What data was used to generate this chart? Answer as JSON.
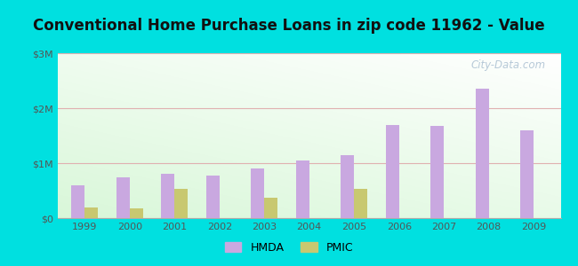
{
  "title": "Conventional Home Purchase Loans in zip code 11962 - Value",
  "years": [
    1999,
    2000,
    2001,
    2002,
    2003,
    2004,
    2005,
    2006,
    2007,
    2008,
    2009
  ],
  "hmda": [
    600000,
    750000,
    800000,
    780000,
    900000,
    1050000,
    1150000,
    1700000,
    1680000,
    2350000,
    1600000
  ],
  "pmic": [
    200000,
    180000,
    530000,
    0,
    370000,
    0,
    530000,
    0,
    0,
    0,
    0
  ],
  "hmda_color": "#c9a8e0",
  "pmic_color": "#c8c870",
  "background_outer": "#00e0e0",
  "ylim": [
    0,
    3000000
  ],
  "yticks": [
    0,
    1000000,
    2000000,
    3000000
  ],
  "ytick_labels": [
    "$0",
    "$1M",
    "$2M",
    "$3M"
  ],
  "title_fontsize": 12,
  "watermark": "City-Data.com"
}
